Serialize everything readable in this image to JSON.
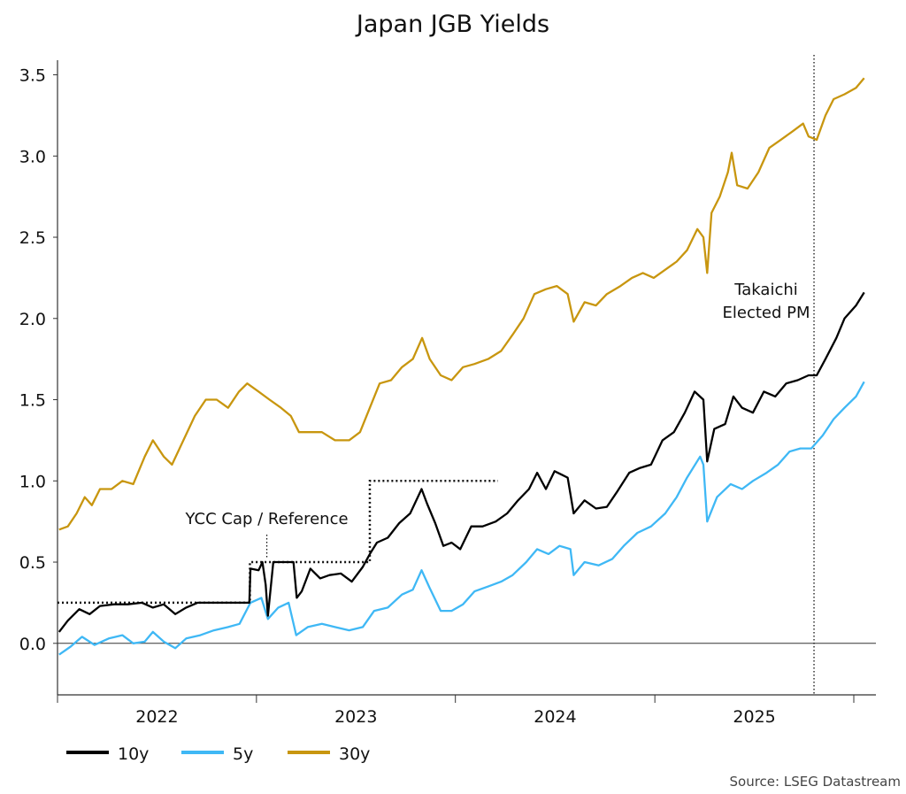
{
  "chart_data": {
    "type": "line",
    "title": "Japan JGB Yields",
    "xlabel": "",
    "ylabel": "",
    "ylim": [
      -0.29,
      3.59
    ],
    "xlim": [
      "2022-01-01",
      "2026-02-05"
    ],
    "grid": false,
    "legend_placement": "bottom-left",
    "yticks": [
      0.0,
      0.5,
      1.0,
      1.5,
      2.0,
      2.5,
      3.0,
      3.5
    ],
    "ytick_labels": [
      "0.0",
      "0.5",
      "1.0",
      "1.5",
      "2.0",
      "2.5",
      "3.0",
      "3.5"
    ],
    "xtick_labels": [
      "2022",
      "2023",
      "2024",
      "2025"
    ],
    "series": [
      {
        "name": "10y",
        "color": "#000000",
        "points": [
          [
            "2022-01-04",
            0.07
          ],
          [
            "2022-01-20",
            0.14
          ],
          [
            "2022-02-10",
            0.21
          ],
          [
            "2022-03-01",
            0.18
          ],
          [
            "2022-03-20",
            0.23
          ],
          [
            "2022-04-15",
            0.24
          ],
          [
            "2022-05-10",
            0.24
          ],
          [
            "2022-06-05",
            0.25
          ],
          [
            "2022-06-25",
            0.22
          ],
          [
            "2022-07-15",
            0.24
          ],
          [
            "2022-08-05",
            0.18
          ],
          [
            "2022-08-25",
            0.22
          ],
          [
            "2022-09-15",
            0.25
          ],
          [
            "2022-10-10",
            0.25
          ],
          [
            "2022-11-01",
            0.25
          ],
          [
            "2022-11-25",
            0.25
          ],
          [
            "2022-12-19",
            0.25
          ],
          [
            "2022-12-21",
            0.46
          ],
          [
            "2023-01-05",
            0.45
          ],
          [
            "2023-01-12",
            0.5
          ],
          [
            "2023-01-18",
            0.36
          ],
          [
            "2023-01-22",
            0.17
          ],
          [
            "2023-02-01",
            0.5
          ],
          [
            "2023-02-20",
            0.5
          ],
          [
            "2023-03-10",
            0.5
          ],
          [
            "2023-03-16",
            0.28
          ],
          [
            "2023-03-25",
            0.32
          ],
          [
            "2023-04-10",
            0.46
          ],
          [
            "2023-04-28",
            0.4
          ],
          [
            "2023-05-15",
            0.42
          ],
          [
            "2023-06-05",
            0.43
          ],
          [
            "2023-06-25",
            0.38
          ],
          [
            "2023-07-15",
            0.47
          ],
          [
            "2023-07-28",
            0.55
          ],
          [
            "2023-08-10",
            0.62
          ],
          [
            "2023-08-30",
            0.65
          ],
          [
            "2023-09-20",
            0.74
          ],
          [
            "2023-10-10",
            0.8
          ],
          [
            "2023-10-31",
            0.95
          ],
          [
            "2023-11-10",
            0.86
          ],
          [
            "2023-11-25",
            0.74
          ],
          [
            "2023-12-10",
            0.6
          ],
          [
            "2023-12-25",
            0.62
          ],
          [
            "2024-01-10",
            0.58
          ],
          [
            "2024-01-30",
            0.72
          ],
          [
            "2024-02-20",
            0.72
          ],
          [
            "2024-03-15",
            0.75
          ],
          [
            "2024-04-05",
            0.8
          ],
          [
            "2024-04-25",
            0.88
          ],
          [
            "2024-05-15",
            0.95
          ],
          [
            "2024-05-30",
            1.05
          ],
          [
            "2024-06-15",
            0.95
          ],
          [
            "2024-07-01",
            1.06
          ],
          [
            "2024-07-25",
            1.02
          ],
          [
            "2024-08-05",
            0.8
          ],
          [
            "2024-08-25",
            0.88
          ],
          [
            "2024-09-15",
            0.83
          ],
          [
            "2024-10-05",
            0.84
          ],
          [
            "2024-10-25",
            0.94
          ],
          [
            "2024-11-15",
            1.05
          ],
          [
            "2024-12-05",
            1.08
          ],
          [
            "2024-12-25",
            1.1
          ],
          [
            "2025-01-15",
            1.25
          ],
          [
            "2025-02-05",
            1.3
          ],
          [
            "2025-02-25",
            1.42
          ],
          [
            "2025-03-15",
            1.55
          ],
          [
            "2025-03-31",
            1.5
          ],
          [
            "2025-04-07",
            1.12
          ],
          [
            "2025-04-20",
            1.32
          ],
          [
            "2025-05-10",
            1.35
          ],
          [
            "2025-05-25",
            1.52
          ],
          [
            "2025-06-10",
            1.45
          ],
          [
            "2025-06-30",
            1.42
          ],
          [
            "2025-07-20",
            1.55
          ],
          [
            "2025-08-10",
            1.52
          ],
          [
            "2025-08-30",
            1.6
          ],
          [
            "2025-09-20",
            1.62
          ],
          [
            "2025-10-10",
            1.65
          ],
          [
            "2025-10-25",
            1.65
          ],
          [
            "2025-11-10",
            1.75
          ],
          [
            "2025-11-30",
            1.88
          ],
          [
            "2025-12-15",
            2.0
          ],
          [
            "2026-01-05",
            2.08
          ],
          [
            "2026-01-20",
            2.16
          ]
        ]
      },
      {
        "name": "5y",
        "color": "#3fb8f5",
        "points": [
          [
            "2022-01-04",
            -0.07
          ],
          [
            "2022-01-25",
            -0.02
          ],
          [
            "2022-02-15",
            0.04
          ],
          [
            "2022-03-10",
            -0.01
          ],
          [
            "2022-04-05",
            0.03
          ],
          [
            "2022-04-30",
            0.05
          ],
          [
            "2022-05-20",
            0.0
          ],
          [
            "2022-06-10",
            0.01
          ],
          [
            "2022-06-25",
            0.07
          ],
          [
            "2022-07-15",
            0.01
          ],
          [
            "2022-08-05",
            -0.03
          ],
          [
            "2022-08-25",
            0.03
          ],
          [
            "2022-09-20",
            0.05
          ],
          [
            "2022-10-15",
            0.08
          ],
          [
            "2022-11-10",
            0.1
          ],
          [
            "2022-12-01",
            0.12
          ],
          [
            "2022-12-21",
            0.25
          ],
          [
            "2023-01-10",
            0.28
          ],
          [
            "2023-01-22",
            0.15
          ],
          [
            "2023-02-10",
            0.22
          ],
          [
            "2023-03-01",
            0.25
          ],
          [
            "2023-03-15",
            0.05
          ],
          [
            "2023-04-05",
            0.1
          ],
          [
            "2023-05-01",
            0.12
          ],
          [
            "2023-05-25",
            0.1
          ],
          [
            "2023-06-20",
            0.08
          ],
          [
            "2023-07-15",
            0.1
          ],
          [
            "2023-08-05",
            0.2
          ],
          [
            "2023-08-30",
            0.22
          ],
          [
            "2023-09-25",
            0.3
          ],
          [
            "2023-10-15",
            0.33
          ],
          [
            "2023-10-31",
            0.45
          ],
          [
            "2023-11-15",
            0.34
          ],
          [
            "2023-12-05",
            0.2
          ],
          [
            "2023-12-25",
            0.2
          ],
          [
            "2024-01-15",
            0.24
          ],
          [
            "2024-02-05",
            0.32
          ],
          [
            "2024-03-01",
            0.35
          ],
          [
            "2024-03-25",
            0.38
          ],
          [
            "2024-04-15",
            0.42
          ],
          [
            "2024-05-10",
            0.5
          ],
          [
            "2024-05-30",
            0.58
          ],
          [
            "2024-06-20",
            0.55
          ],
          [
            "2024-07-10",
            0.6
          ],
          [
            "2024-07-30",
            0.58
          ],
          [
            "2024-08-05",
            0.42
          ],
          [
            "2024-08-25",
            0.5
          ],
          [
            "2024-09-20",
            0.48
          ],
          [
            "2024-10-15",
            0.52
          ],
          [
            "2024-11-05",
            0.6
          ],
          [
            "2024-11-30",
            0.68
          ],
          [
            "2024-12-25",
            0.72
          ],
          [
            "2025-01-20",
            0.8
          ],
          [
            "2025-02-10",
            0.9
          ],
          [
            "2025-03-01",
            1.02
          ],
          [
            "2025-03-25",
            1.15
          ],
          [
            "2025-03-31",
            1.1
          ],
          [
            "2025-04-07",
            0.75
          ],
          [
            "2025-04-25",
            0.9
          ],
          [
            "2025-05-20",
            0.98
          ],
          [
            "2025-06-10",
            0.95
          ],
          [
            "2025-06-30",
            1.0
          ],
          [
            "2025-07-25",
            1.05
          ],
          [
            "2025-08-15",
            1.1
          ],
          [
            "2025-09-05",
            1.18
          ],
          [
            "2025-09-25",
            1.2
          ],
          [
            "2025-10-15",
            1.2
          ],
          [
            "2025-11-05",
            1.28
          ],
          [
            "2025-11-25",
            1.38
          ],
          [
            "2025-12-15",
            1.45
          ],
          [
            "2026-01-05",
            1.52
          ],
          [
            "2026-01-20",
            1.61
          ]
        ]
      },
      {
        "name": "30y",
        "color": "#c8960f",
        "points": [
          [
            "2022-01-04",
            0.7
          ],
          [
            "2022-01-20",
            0.72
          ],
          [
            "2022-02-05",
            0.8
          ],
          [
            "2022-02-20",
            0.9
          ],
          [
            "2022-03-05",
            0.85
          ],
          [
            "2022-03-20",
            0.95
          ],
          [
            "2022-04-10",
            0.95
          ],
          [
            "2022-04-30",
            1.0
          ],
          [
            "2022-05-20",
            0.98
          ],
          [
            "2022-06-10",
            1.15
          ],
          [
            "2022-06-25",
            1.25
          ],
          [
            "2022-07-15",
            1.15
          ],
          [
            "2022-07-30",
            1.1
          ],
          [
            "2022-08-20",
            1.25
          ],
          [
            "2022-09-10",
            1.4
          ],
          [
            "2022-09-30",
            1.5
          ],
          [
            "2022-10-20",
            1.5
          ],
          [
            "2022-11-10",
            1.45
          ],
          [
            "2022-11-30",
            1.55
          ],
          [
            "2022-12-15",
            1.6
          ],
          [
            "2023-01-05",
            1.55
          ],
          [
            "2023-01-25",
            1.5
          ],
          [
            "2023-02-15",
            1.45
          ],
          [
            "2023-03-05",
            1.4
          ],
          [
            "2023-03-20",
            1.3
          ],
          [
            "2023-04-10",
            1.3
          ],
          [
            "2023-05-01",
            1.3
          ],
          [
            "2023-05-25",
            1.25
          ],
          [
            "2023-06-20",
            1.25
          ],
          [
            "2023-07-10",
            1.3
          ],
          [
            "2023-07-28",
            1.45
          ],
          [
            "2023-08-15",
            1.6
          ],
          [
            "2023-09-05",
            1.62
          ],
          [
            "2023-09-25",
            1.7
          ],
          [
            "2023-10-15",
            1.75
          ],
          [
            "2023-11-01",
            1.88
          ],
          [
            "2023-11-15",
            1.75
          ],
          [
            "2023-12-05",
            1.65
          ],
          [
            "2023-12-25",
            1.62
          ],
          [
            "2024-01-15",
            1.7
          ],
          [
            "2024-02-05",
            1.72
          ],
          [
            "2024-03-01",
            1.75
          ],
          [
            "2024-03-25",
            1.8
          ],
          [
            "2024-04-15",
            1.9
          ],
          [
            "2024-05-05",
            2.0
          ],
          [
            "2024-05-25",
            2.15
          ],
          [
            "2024-06-15",
            2.18
          ],
          [
            "2024-07-05",
            2.2
          ],
          [
            "2024-07-25",
            2.15
          ],
          [
            "2024-08-05",
            1.98
          ],
          [
            "2024-08-25",
            2.1
          ],
          [
            "2024-09-15",
            2.08
          ],
          [
            "2024-10-05",
            2.15
          ],
          [
            "2024-10-30",
            2.2
          ],
          [
            "2024-11-20",
            2.25
          ],
          [
            "2024-12-10",
            2.28
          ],
          [
            "2024-12-30",
            2.25
          ],
          [
            "2025-01-20",
            2.3
          ],
          [
            "2025-02-10",
            2.35
          ],
          [
            "2025-03-01",
            2.42
          ],
          [
            "2025-03-20",
            2.55
          ],
          [
            "2025-03-31",
            2.5
          ],
          [
            "2025-04-07",
            2.28
          ],
          [
            "2025-04-15",
            2.65
          ],
          [
            "2025-04-30",
            2.75
          ],
          [
            "2025-05-15",
            2.9
          ],
          [
            "2025-05-22",
            3.02
          ],
          [
            "2025-06-01",
            2.82
          ],
          [
            "2025-06-20",
            2.8
          ],
          [
            "2025-07-10",
            2.9
          ],
          [
            "2025-07-30",
            3.05
          ],
          [
            "2025-08-20",
            3.1
          ],
          [
            "2025-09-10",
            3.15
          ],
          [
            "2025-09-30",
            3.2
          ],
          [
            "2025-10-10",
            3.12
          ],
          [
            "2025-10-25",
            3.1
          ],
          [
            "2025-11-10",
            3.25
          ],
          [
            "2025-11-25",
            3.35
          ],
          [
            "2025-12-15",
            3.38
          ],
          [
            "2026-01-05",
            3.42
          ],
          [
            "2026-01-20",
            3.48
          ]
        ]
      }
    ],
    "ycc_cap": {
      "label": "YCC Cap / Reference",
      "steps": [
        [
          "2022-01-01",
          0.25
        ],
        [
          "2022-12-20",
          0.5
        ],
        [
          "2023-07-28",
          1.0
        ],
        [
          "2024-03-19",
          1.0
        ]
      ]
    },
    "event_marker": {
      "date": "2025-10-20",
      "label_lines": [
        "Takaichi",
        "Elected PM"
      ]
    },
    "source": "Source: LSEG Datastream"
  }
}
